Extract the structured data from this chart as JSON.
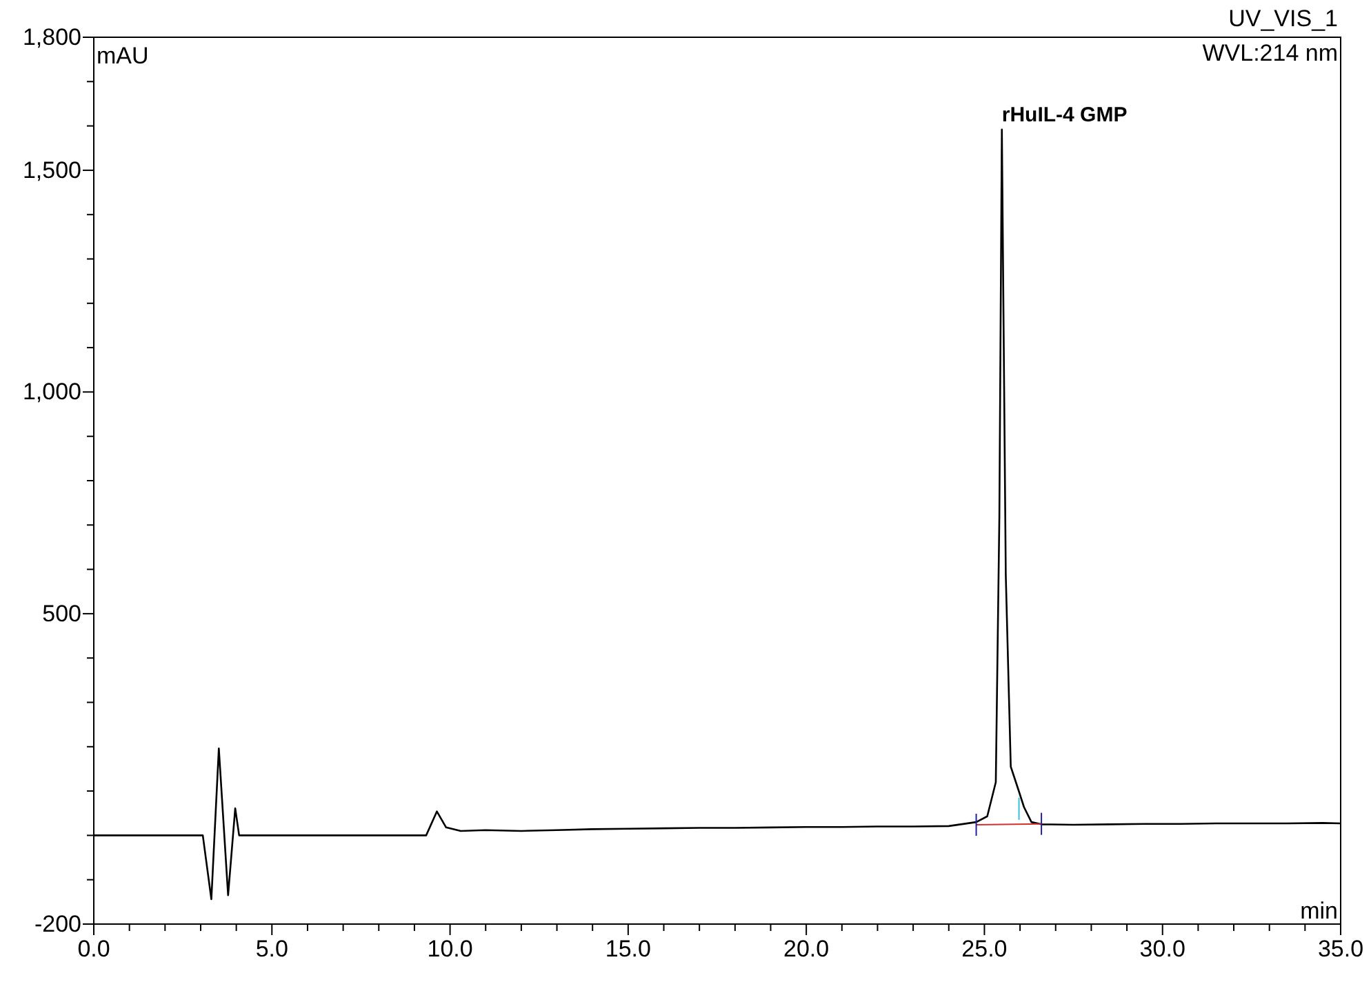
{
  "chart_data": {
    "type": "line",
    "title": "UV_VIS_1",
    "subtitle": "WVL:214 nm",
    "xlabel": "min",
    "ylabel": "mAU",
    "x": [
      0,
      3.06,
      3.3,
      3.51,
      3.77,
      3.97,
      4.08,
      9.33,
      9.63,
      9.89,
      10.3,
      11,
      12,
      13,
      14,
      15,
      16,
      17,
      18,
      19,
      20,
      21,
      22,
      23,
      24,
      24.77,
      25.08,
      25.32,
      25.42,
      25.49,
      25.6,
      25.74,
      25.97,
      26.11,
      26.32,
      26.6,
      27.5,
      28.5,
      29.5,
      30.5,
      31.5,
      32.5,
      33.5,
      34.5,
      35
    ],
    "series": [
      {
        "color": "#000000",
        "values": [
          0,
          0,
          -144,
          196,
          -135,
          61,
          0,
          0,
          54,
          18,
          10,
          12,
          10,
          12,
          14,
          15,
          16,
          17,
          17,
          18,
          19,
          19,
          20,
          20,
          21,
          30,
          43,
          120,
          720,
          1592,
          587,
          155,
          99,
          64,
          30,
          25,
          24,
          25,
          26,
          26,
          27,
          27,
          27,
          28,
          27
        ]
      }
    ],
    "xlim": [
      0,
      35
    ],
    "ylim": [
      -200,
      1800
    ],
    "xticks": [
      {
        "value": 0,
        "label": "0.0"
      },
      {
        "value": 1,
        "label": null
      },
      {
        "value": 2,
        "label": null
      },
      {
        "value": 3,
        "label": null
      },
      {
        "value": 4,
        "label": null
      },
      {
        "value": 5,
        "label": "5.0"
      },
      {
        "value": 6,
        "label": null
      },
      {
        "value": 7,
        "label": null
      },
      {
        "value": 8,
        "label": null
      },
      {
        "value": 9,
        "label": null
      },
      {
        "value": 10,
        "label": "10.0"
      },
      {
        "value": 11,
        "label": null
      },
      {
        "value": 12,
        "label": null
      },
      {
        "value": 13,
        "label": null
      },
      {
        "value": 14,
        "label": null
      },
      {
        "value": 15,
        "label": "15.0"
      },
      {
        "value": 16,
        "label": null
      },
      {
        "value": 17,
        "label": null
      },
      {
        "value": 18,
        "label": null
      },
      {
        "value": 19,
        "label": null
      },
      {
        "value": 20,
        "label": "20.0"
      },
      {
        "value": 21,
        "label": null
      },
      {
        "value": 22,
        "label": null
      },
      {
        "value": 23,
        "label": null
      },
      {
        "value": 24,
        "label": null
      },
      {
        "value": 25,
        "label": "25.0"
      },
      {
        "value": 26,
        "label": null
      },
      {
        "value": 27,
        "label": null
      },
      {
        "value": 28,
        "label": null
      },
      {
        "value": 29,
        "label": null
      },
      {
        "value": 30,
        "label": "30.0"
      },
      {
        "value": 31,
        "label": null
      },
      {
        "value": 32,
        "label": null
      },
      {
        "value": 33,
        "label": null
      },
      {
        "value": 34,
        "label": null
      },
      {
        "value": 35,
        "label": "35.0"
      }
    ],
    "yticks": [
      -200,
      {
        "value": -100,
        "label": null
      },
      {
        "value": 0,
        "label": null
      },
      {
        "value": 100,
        "label": null
      },
      {
        "value": 200,
        "label": null
      },
      {
        "value": 300,
        "label": null
      },
      {
        "value": 400,
        "label": null
      },
      500,
      {
        "value": 600,
        "label": null
      },
      {
        "value": 700,
        "label": null
      },
      {
        "value": 800,
        "label": null
      },
      {
        "value": 900,
        "label": null
      },
      {
        "value": 1000,
        "label": "1,000"
      },
      {
        "value": 1100,
        "label": null
      },
      {
        "value": 1200,
        "label": null
      },
      {
        "value": 1300,
        "label": null
      },
      {
        "value": 1400,
        "label": null
      },
      {
        "value": 1500,
        "label": "1,500"
      },
      {
        "value": 1600,
        "label": null
      },
      {
        "value": 1700,
        "label": null
      },
      {
        "value": 1800,
        "label": "1,800"
      }
    ],
    "annotations": [
      {
        "text": "rHuIL-4 GMP",
        "x": 25.49,
        "y": 1592
      }
    ]
  }
}
